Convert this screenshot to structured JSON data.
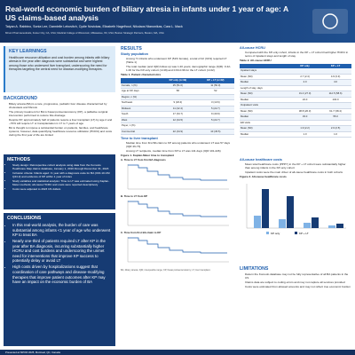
{
  "header": {
    "title": "Real-world economic burden of biliary atresia in infants under 1 year of age: A US claims-based analysis",
    "authors": "Tatyan A. Rabbino, Sonia Lee, Dannielle Lebovitch, Cydie Novickas, Elizabeth Nagelhout, Nikolaos Ntanonikas, Cara L. Mack",
    "affiliations": "Mirum Pharmaceuticals, Foster City, CA, USA; Medical College of Wisconsin, Milwaukee, WI, USA; Boston Strategic Partners, Boston, MA, USA"
  },
  "key_learnings": {
    "title": "KEY LEARNINGS",
    "text": "Healthcare resource utilization and cost burden among infants with biliary atresia in the year after diagnosis were substantial and were highest among those who underwent liver transplant, underscoring the need for therapies targeting the central need for disease-modifying therapies."
  },
  "background": {
    "title": "BACKGROUND",
    "bullets": [
      "Biliary atresia (BA) is a rare, progressive, pediatric liver disease characterized by cholestasis and fibrosis",
      "The primary treatment for BA is Kasai portoenterostomy (KP), a palliative surgical intervention performed to restore bile drainage",
      "Despite KP, approximately half of patients require a liver transplant (LT) by age 2 and ~70% will require LT or transplantation in 17 to 7 years of age",
      "BA is thought to impose a substantial burden on patients, families, and healthcare systems; however, data quantifying healthcare resource utilization (HCRU) and costs during the first year of life are limited"
    ]
  },
  "methods": {
    "title": "METHODS",
    "bullets": [
      "Study design: Retrospective cohort analysis using data from the Komodo Healthcare Map claims database, January 1, 2016 through December 31, 2023",
      "Inclusion criteria: Infants aged <1 year with a diagnosis code for BA (ICD-10-CM Q44.2) and evidence of KP within 1 year of index",
      "Study variables and statistical analysis: Time to LT was estimated using Kaplan-Meier methods; all-cause HCRU and costs were reported descriptively",
      "Costs were adjusted to 2023 US dollars"
    ]
  },
  "conclusions": {
    "title": "CONCLUSIONS",
    "bullets": [
      "In this real-world analysis, the burden of care was substantial among infants <1 year of age who underwent KP to treat BA",
      "Nearly one-third of patients required LT after KP in the year after BA diagnosis, incurring substantially higher HCRU and cost burdens and underscoring the unmet need for interventions that improve KP success to potentially delay or avoid LT",
      "High costs driven by hospitalizations suggest that coordination of care pathways and disease-modifying therapies that improve patient outcomes after KP may have an impact on the economic burden of BA"
    ]
  },
  "results": {
    "title": "RESULTS",
    "subtitle": "Study population",
    "bullets": [
      "Among 71 infants who underwent KP (51% female), a total of 22 (31%) required LT (Table 1)",
      "The total median (and IQR) follow-up was 1.20 years; demographic range (IQR): 0.42-1.00 for the KP-only cohort (n=49) and 0.63-0.96 for the LT cohort (n=22)"
    ],
    "table1": {
      "caption": "Table 1. Patient characteristics",
      "header": [
        "",
        "KP only (n=49)",
        "KP + LT (n=22)"
      ],
      "rows": [
        [
          "Female, n (%)",
          "25 (51.0)",
          "11 (50.0)"
        ],
        [
          "Age at KP, days",
          "58",
          "52"
        ],
        [
          "Region, n (%)",
          "",
          ""
        ],
        [
          "Northeast",
          "9 (18.4)",
          "3 (13.6)"
        ],
        [
          "Midwest",
          "11 (22.4)",
          "5 (22.7)"
        ],
        [
          "South",
          "17 (34.7)",
          "9 (40.9)"
        ],
        [
          "West",
          "12 (24.5)",
          "5 (22.7)"
        ],
        [
          "Payer, n (%)",
          "",
          ""
        ],
        [
          "Commercial",
          "22 (44.9)",
          "10 (45.5)"
        ],
        [
          "Medicaid",
          "27 (55.1)",
          "12 (54.5)"
        ]
      ]
    }
  },
  "ttlt": {
    "title": "Time to liver transplant",
    "bullets": [
      "Median time from first BA claim to KP among patients who underwent LT was 57 days (IQR 46-73)",
      "Among LT recipients, median time from KP to LT was 141 days (IQR 101-226)"
    ],
    "figure_caption": "Figure 1. Kaplan-Meier time to transplant",
    "panels": [
      "A. Time to LT from first BA diagnosis",
      "B. Time to LT from KP",
      "C. Time from first BA claim to KP"
    ],
    "footnote": "BA, biliary atresia; IQR, interquartile range; KP, Kasai portoenterostomy; LT, liver transplant."
  },
  "hcru": {
    "title": "All-cause HCRU",
    "bullets": [
      "Compared with the KP-only cohort, infants in the KP + LT cohort had higher HCRU in terms of inpatient stays and length of stay"
    ],
    "table2": {
      "caption": "Table 2. All-cause HCRU",
      "header": [
        "",
        "KP only",
        "KP + LT"
      ],
      "rows": [
        [
          "Inpatient stays",
          "",
          ""
        ],
        [
          "Mean (SD)",
          "2.7 (2.4)",
          "4.9 (3.3)"
        ],
        [
          "Median",
          "2.0",
          "4.0"
        ],
        [
          "Length of stay, days",
          "",
          ""
        ],
        [
          "Mean (SD)",
          "31.4 (27.0)",
          "112.5 (58.6)"
        ],
        [
          "Median",
          "24.0",
          "104.0"
        ],
        [
          "Outpatient visits",
          "",
          ""
        ],
        [
          "Mean (SD)",
          "38.8 (26.3)",
          "61.7 (38.4)"
        ],
        [
          "Median",
          "33.0",
          "55.0"
        ],
        [
          "ED visits",
          "",
          ""
        ],
        [
          "Mean (SD)",
          "1.9 (2.2)",
          "2.0 (2.5)"
        ],
        [
          "Median",
          "1.0",
          "1.0"
        ]
      ]
    }
  },
  "costs": {
    "title": "All-cause healthcare costs",
    "bullets": [
      "Mean total healthcare costs (PPPY) in the KP + LT cohort were substantially higher than among infants in the KP-only cohort",
      "Inpatient costs were the main driver of all-cause healthcare costs in both cohorts"
    ],
    "figure_caption": "Figure 2. All-cause healthcare costs",
    "legend": [
      "KP only",
      "KP + LT"
    ]
  },
  "limitations": {
    "title": "LIMITATIONS",
    "bullets": [
      "Data in the Komodo database may not be fully representative of all BA patients in the US",
      "Claims data are subject to coding errors and may not capture all services provided",
      "Costs were estimated from allowed amounts and may not reflect true economic burden"
    ]
  },
  "footer": "Presented at ISPOR 2025, Montreal, QC, Canada"
}
